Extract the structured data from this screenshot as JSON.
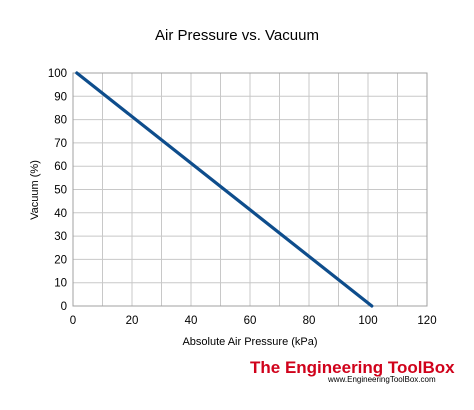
{
  "chart_data": {
    "type": "line",
    "title": "Air Pressure vs. Vacuum",
    "xlabel": "Absolute Air Pressure (kPa)",
    "ylabel": "Vacuum (%)",
    "xlim": [
      0,
      120
    ],
    "ylim": [
      0,
      100
    ],
    "x_ticks": [
      "0",
      "20",
      "40",
      "60",
      "80",
      "100",
      "120"
    ],
    "y_ticks": [
      "0",
      "10",
      "20",
      "30",
      "40",
      "50",
      "60",
      "70",
      "80",
      "90",
      "100"
    ],
    "grid": true,
    "series": [
      {
        "color": "#0e4d8c",
        "points": [
          {
            "x": 1.3,
            "y": 100
          },
          {
            "x": 101.3,
            "y": 0
          }
        ]
      }
    ]
  },
  "branding": {
    "name": "The Engineering ToolBox",
    "url": "www.EngineeringToolBox.com",
    "color": "#d0021b"
  }
}
